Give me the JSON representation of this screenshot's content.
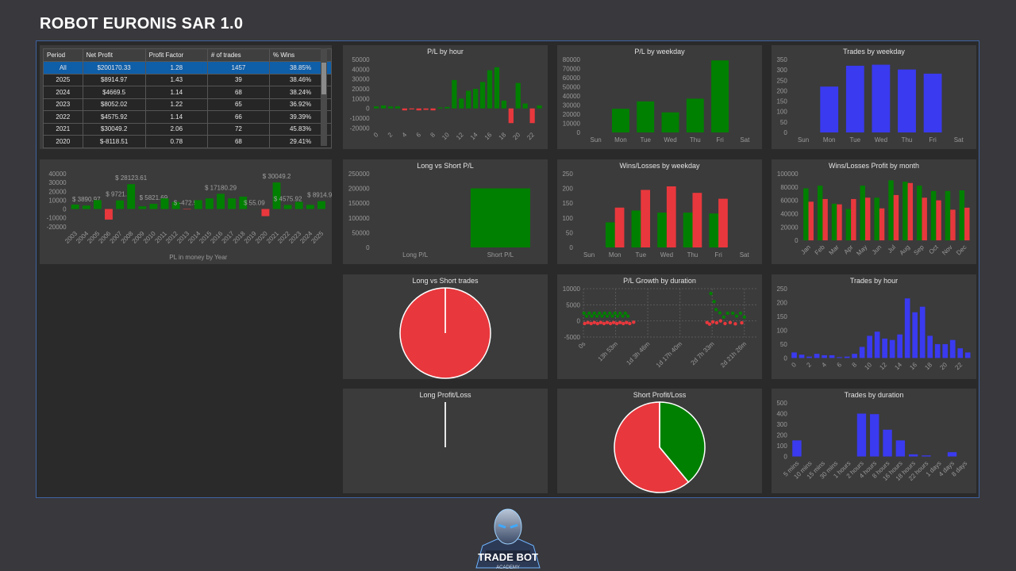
{
  "header": {
    "title": "ROBOT EURONIS SAR 1.0"
  },
  "table": {
    "columns": [
      "Period",
      "Net Profit",
      "Profit Factor",
      "# of trades",
      "% Wins"
    ],
    "rows": [
      [
        "All",
        "$200170.33",
        "1.28",
        "1457",
        "38.85%"
      ],
      [
        "2025",
        "$8914.97",
        "1.43",
        "39",
        "38.46%"
      ],
      [
        "2024",
        "$4669.5",
        "1.14",
        "68",
        "38.24%"
      ],
      [
        "2023",
        "$8052.02",
        "1.22",
        "65",
        "36.92%"
      ],
      [
        "2022",
        "$4575.92",
        "1.14",
        "66",
        "39.39%"
      ],
      [
        "2021",
        "$30049.2",
        "2.06",
        "72",
        "45.83%"
      ],
      [
        "2020",
        "$-8118.51",
        "0.78",
        "68",
        "29.41%"
      ]
    ]
  },
  "chart_data": [
    {
      "type": "bar",
      "x_label": "PL in money by Year",
      "categories": [
        "2003",
        "2004",
        "2005",
        "2006",
        "2007",
        "2008",
        "2009",
        "2010",
        "2011",
        "2012",
        "2013",
        "2014",
        "2015",
        "2016",
        "2017",
        "2018",
        "2019",
        "2020",
        "2021",
        "2022",
        "2023",
        "2024",
        "2025"
      ],
      "values": [
        5000,
        3890.97,
        10000,
        -12000,
        9721.72,
        28123.61,
        3000,
        5821.69,
        12000,
        8000,
        -472.58,
        10000,
        12000,
        17180.29,
        12000,
        14000,
        55.09,
        -8118.51,
        30049.2,
        4575.92,
        8052.02,
        4669.5,
        8914.97
      ],
      "value_labels": [
        null,
        "$ 3890.97",
        null,
        null,
        "$ 9721.72",
        "$ 28123.61",
        null,
        "$ 5821.69",
        null,
        null,
        "$ -472.58",
        null,
        null,
        "$ 17180.29",
        null,
        null,
        "$ 55.09",
        null,
        "$ 30049.2",
        "$ 4575.92",
        null,
        null,
        "$ 8914.97"
      ],
      "positive_color": "#008000",
      "negative_color": "#e8383d",
      "ylim": [
        -20000,
        40000
      ],
      "yticks": [
        40000,
        30000,
        20000,
        10000,
        0,
        -10000,
        -20000
      ]
    },
    {
      "type": "bar",
      "title": "P/L by hour",
      "categories": [
        "0",
        null,
        "2",
        null,
        "4",
        null,
        "6",
        null,
        "8",
        null,
        "10",
        null,
        "12",
        null,
        "14",
        null,
        "16",
        null,
        "18",
        null,
        "20",
        null,
        "22",
        null
      ],
      "values": [
        2000,
        3000,
        2000,
        2000,
        -2000,
        -1000,
        -2000,
        -1500,
        -2000,
        1000,
        1500,
        29000,
        10000,
        18000,
        20000,
        27000,
        39000,
        42000,
        8000,
        -15000,
        26000,
        5000,
        -15000,
        3000
      ],
      "positive_color": "#008000",
      "negative_color": "#e8383d",
      "ylim": [
        -20000,
        50000
      ],
      "yticks": [
        50000,
        40000,
        30000,
        20000,
        10000,
        0,
        -10000,
        -20000
      ]
    },
    {
      "type": "bar",
      "title": "P/L by weekday",
      "categories": [
        "Sun",
        "Mon",
        "Tue",
        "Wed",
        "Thu",
        "Fri",
        "Sat"
      ],
      "values": [
        0,
        26000,
        34000,
        22000,
        37000,
        79000,
        0
      ],
      "color": "#008000",
      "ylim": [
        0,
        80000
      ],
      "yticks": [
        80000,
        70000,
        60000,
        50000,
        40000,
        30000,
        20000,
        10000,
        0
      ]
    },
    {
      "type": "bar",
      "title": "Trades by weekday",
      "categories": [
        "Sun",
        "Mon",
        "Tue",
        "Wed",
        "Thu",
        "Fri",
        "Sat"
      ],
      "values": [
        0,
        220,
        320,
        325,
        302,
        282,
        0
      ],
      "color": "#3a3af0",
      "ylim": [
        0,
        350
      ],
      "yticks": [
        350,
        300,
        250,
        200,
        150,
        100,
        50,
        0
      ]
    },
    {
      "type": "bar",
      "title": "Long vs Short P/L",
      "categories": [
        "Long P/L",
        "Short P/L"
      ],
      "values": [
        0,
        200170.33
      ],
      "color": "#008000",
      "ylim": [
        0,
        250000
      ],
      "yticks": [
        250000,
        200000,
        150000,
        100000,
        50000,
        0
      ]
    },
    {
      "type": "bar",
      "title": "Wins/Losses by weekday",
      "categories": [
        "Sun",
        "Mon",
        "Tue",
        "Wed",
        "Thu",
        "Fri",
        "Sat"
      ],
      "series": [
        {
          "color": "#008000",
          "values": [
            0,
            85,
            125,
            118,
            118,
            115,
            0
          ]
        },
        {
          "color": "#e8383d",
          "values": [
            0,
            135,
            195,
            207,
            185,
            165,
            0
          ]
        }
      ],
      "ylim": [
        0,
        250
      ],
      "yticks": [
        250,
        200,
        150,
        100,
        50,
        0
      ]
    },
    {
      "type": "bar",
      "title": "Wins/Losses Profit by month",
      "categories": [
        "Jan",
        "Feb",
        "Mar",
        "Apr",
        "May",
        "Jun",
        "Jul",
        "Aug",
        "Sep",
        "Oct",
        "Nov",
        "Dec"
      ],
      "series": [
        {
          "color": "#008000",
          "values": [
            78000,
            82000,
            55000,
            47000,
            82000,
            64000,
            90000,
            88000,
            82000,
            74000,
            74000,
            75000
          ]
        },
        {
          "color": "#e8383d",
          "values": [
            58000,
            62000,
            54000,
            62000,
            64000,
            48000,
            68000,
            86000,
            64000,
            60000,
            46000,
            49000
          ]
        }
      ],
      "ylim": [
        0,
        100000
      ],
      "yticks": [
        100000,
        80000,
        60000,
        40000,
        20000,
        0
      ]
    },
    {
      "type": "pie",
      "title": "Long vs Short trades",
      "values": [
        0,
        1457
      ],
      "colors": [
        "#008000",
        "#e8383d"
      ]
    },
    {
      "type": "scatter",
      "title": "P/L Growth by duration",
      "grid": true,
      "xlim": [
        0,
        270000
      ],
      "xticks": [
        {
          "value": 0,
          "label": "0s"
        },
        {
          "value": 49980,
          "label": "13h 53m"
        },
        {
          "value": 99960,
          "label": "1d 3h 46m"
        },
        {
          "value": 150000,
          "label": "1d 17h 40m"
        },
        {
          "value": 199980,
          "label": "2d 7h 33m"
        },
        {
          "value": 249960,
          "label": "2d 21h 26m"
        }
      ],
      "ylim": [
        -5000,
        10000
      ],
      "yticks": [
        10000,
        5000,
        0,
        -5000
      ],
      "series": [
        {
          "color": "#008000",
          "x": [
            1000,
            5000,
            9000,
            13000,
            17000,
            21000,
            25000,
            29000,
            33000,
            37000,
            41000,
            45000,
            49000,
            53000,
            57000,
            61000,
            65000,
            69000,
            198000,
            203000,
            206000,
            212000,
            218000,
            224000,
            232000,
            238000,
            244000,
            250000
          ],
          "values": [
            2400,
            1500,
            2400,
            1500,
            2400,
            1500,
            2400,
            1500,
            2400,
            1500,
            2400,
            1500,
            2400,
            1500,
            2400,
            1500,
            2400,
            1500,
            8500,
            6000,
            3500,
            2500,
            1200,
            2400,
            2400,
            1500,
            2400,
            1200
          ]
        },
        {
          "color": "#e8383d",
          "x": [
            2000,
            7000,
            12000,
            17000,
            22000,
            27000,
            32000,
            37000,
            42000,
            47000,
            52000,
            57000,
            62000,
            67000,
            72000,
            78000,
            192000,
            196000,
            201000,
            207000,
            213000,
            220000,
            228000,
            236000,
            246000
          ],
          "values": [
            -800,
            -500,
            -800,
            -500,
            -800,
            -500,
            -800,
            -500,
            -800,
            -500,
            -800,
            -500,
            -800,
            -500,
            -800,
            -400,
            -500,
            -1000,
            -300,
            -600,
            0,
            -800,
            -500,
            -900,
            -600
          ]
        }
      ]
    },
    {
      "type": "bar",
      "title": "Trades by hour",
      "categories": [
        "0",
        null,
        "2",
        null,
        "4",
        null,
        "6",
        null,
        "8",
        null,
        "10",
        null,
        "12",
        null,
        "14",
        null,
        "16",
        null,
        "18",
        null,
        "20",
        null,
        "22",
        null
      ],
      "values": [
        20,
        12,
        5,
        15,
        10,
        10,
        3,
        5,
        15,
        40,
        80,
        95,
        70,
        65,
        85,
        215,
        165,
        185,
        80,
        50,
        50,
        65,
        35,
        20
      ],
      "color": "#3a3af0",
      "ylim": [
        0,
        250
      ],
      "yticks": [
        250,
        200,
        150,
        100,
        50,
        0
      ]
    },
    {
      "type": "pie",
      "title": "Long Profit/Loss",
      "values": [
        0,
        0
      ],
      "colors": [
        "#008000",
        "#e8383d"
      ]
    },
    {
      "type": "pie",
      "title": "Short Profit/Loss",
      "values": [
        39,
        61
      ],
      "colors": [
        "#008000",
        "#e8383d"
      ]
    },
    {
      "type": "bar",
      "title": "Trades by duration",
      "categories": [
        "5 mins",
        "10 mins",
        "15 mins",
        "30 mins",
        "1 hours",
        "2 hours",
        "4 hours",
        "8 hours",
        "16 hours",
        "18 hours",
        "22 hours",
        "1 days",
        "4 days",
        "8 days"
      ],
      "values": [
        150,
        0,
        0,
        0,
        0,
        400,
        395,
        250,
        150,
        20,
        10,
        0,
        40,
        0
      ],
      "color": "#3a3af0",
      "ylim": [
        0,
        500
      ],
      "yticks": [
        500,
        400,
        300,
        200,
        100,
        0
      ]
    }
  ],
  "logo": {
    "text": "TRADE BOT",
    "subtext": "ACADEMY"
  }
}
